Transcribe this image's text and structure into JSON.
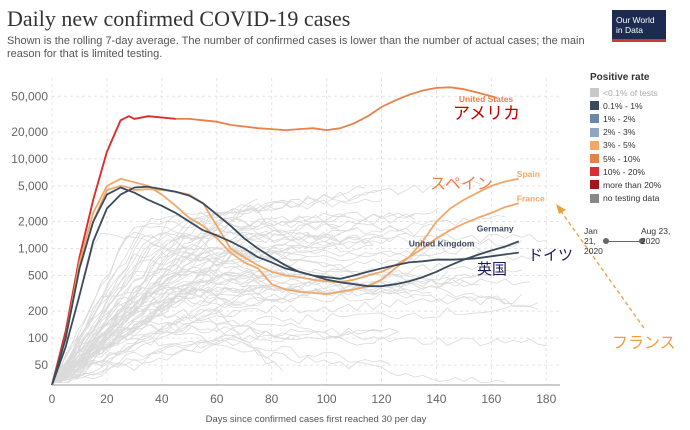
{
  "header": {
    "title": "Daily new confirmed COVID-19 cases",
    "subtitle": "Shown is the rolling 7-day average. The number of confirmed cases is lower than the number of actual cases; the main reason for that is limited testing.",
    "logo_line1": "Our World",
    "logo_line2": "in Data"
  },
  "legend": {
    "title": "Positive rate",
    "items": [
      {
        "label": "<0.1% of tests",
        "color": "#c8c8c8",
        "faded": true
      },
      {
        "label": "0.1% - 1%",
        "color": "#3b4a5c"
      },
      {
        "label": "1% - 2%",
        "color": "#6b87a8"
      },
      {
        "label": "2% - 3%",
        "color": "#8fa6c3"
      },
      {
        "label": "3% - 5%",
        "color": "#f0a86a"
      },
      {
        "label": "5% - 10%",
        "color": "#e8804a"
      },
      {
        "label": "10% - 20%",
        "color": "#d83030"
      },
      {
        "label": "more than 20%",
        "color": "#9c1a1a"
      },
      {
        "label": "no testing data",
        "color": "#888888"
      }
    ]
  },
  "timeline": {
    "start": "Jan 21, 2020",
    "end": "Aug 23, 2020"
  },
  "colors": {
    "united_states": "#e8804a",
    "spain": "#f0a86a",
    "france": "#f0a86a",
    "germany": "#3b4a5c",
    "united_kingdom": "#3b4a5c",
    "background_lines": "#dadada",
    "annotation_us": "#c00000",
    "annotation_spain": "#e8804a",
    "annotation_france": "#e8a040",
    "annotation_uk": "#1a1a5a"
  },
  "annotations": {
    "united_states_ja": "アメリカ",
    "spain_ja": "スペイン",
    "united_kingdom_ja": "英国",
    "germany_ja": "ドイツ",
    "france_ja": "フランス"
  },
  "chart_data": {
    "type": "line",
    "title": "Daily new confirmed COVID-19 cases",
    "subtitle": "Shown is the rolling 7-day average. The number of confirmed cases is lower than the number of actual cases; the main reason for that is limited testing.",
    "xlabel": "Days since confirmed cases first reached 30 per day",
    "ylabel": "",
    "x_ticks": [
      0,
      20,
      40,
      60,
      80,
      100,
      120,
      140,
      160,
      180
    ],
    "y_ticks": [
      50,
      100,
      200,
      500,
      1000,
      2000,
      5000,
      10000,
      20000,
      50000
    ],
    "y_tick_labels": [
      "50",
      "100",
      "200",
      "500",
      "1,000",
      "2,000",
      "5,000",
      "10,000",
      "20,000",
      "50,000"
    ],
    "y_scale": "log",
    "xlim": [
      0,
      185
    ],
    "ylim": [
      30,
      80000
    ],
    "grid": true,
    "series": [
      {
        "name": "United States",
        "x": [
          0,
          5,
          10,
          15,
          20,
          25,
          28,
          30,
          35,
          40,
          45,
          50,
          55,
          60,
          65,
          70,
          75,
          80,
          85,
          90,
          95,
          100,
          105,
          110,
          115,
          120,
          125,
          130,
          135,
          140,
          145,
          150,
          155,
          160,
          162
        ],
        "y": [
          30,
          120,
          800,
          3500,
          12000,
          27000,
          30000,
          28000,
          30000,
          29000,
          28000,
          28000,
          27000,
          26000,
          24000,
          23000,
          22000,
          21500,
          21000,
          21500,
          22000,
          21000,
          22000,
          25000,
          30000,
          38000,
          45000,
          52000,
          58000,
          62000,
          63000,
          60000,
          55000,
          50000,
          48000
        ]
      },
      {
        "name": "Spain",
        "x": [
          0,
          5,
          10,
          15,
          20,
          25,
          30,
          35,
          40,
          45,
          50,
          55,
          60,
          65,
          70,
          75,
          80,
          85,
          90,
          95,
          100,
          105,
          110,
          115,
          120,
          125,
          130,
          135,
          140,
          145,
          150,
          155,
          160,
          165,
          170
        ],
        "y": [
          30,
          100,
          700,
          2500,
          5000,
          6000,
          5500,
          5000,
          4000,
          3000,
          2200,
          1800,
          1300,
          900,
          700,
          600,
          400,
          350,
          330,
          320,
          310,
          330,
          350,
          380,
          450,
          600,
          800,
          1200,
          2000,
          2800,
          3500,
          4200,
          5000,
          5600,
          6000
        ]
      },
      {
        "name": "France",
        "x": [
          0,
          5,
          10,
          15,
          20,
          25,
          28,
          30,
          35,
          40,
          45,
          50,
          55,
          60,
          65,
          70,
          75,
          80,
          85,
          90,
          95,
          100,
          105,
          110,
          115,
          120,
          125,
          130,
          135,
          140,
          145,
          150,
          155,
          160,
          165,
          170
        ],
        "y": [
          30,
          100,
          600,
          2000,
          4500,
          5000,
          4800,
          4500,
          4600,
          4500,
          4300,
          4000,
          3200,
          1800,
          1000,
          800,
          650,
          550,
          500,
          480,
          450,
          430,
          420,
          450,
          500,
          550,
          650,
          800,
          1000,
          1300,
          1600,
          1900,
          2200,
          2500,
          2900,
          3200
        ]
      },
      {
        "name": "Germany",
        "x": [
          0,
          5,
          10,
          15,
          20,
          25,
          30,
          35,
          40,
          45,
          50,
          55,
          60,
          65,
          70,
          75,
          80,
          85,
          90,
          95,
          100,
          105,
          110,
          115,
          120,
          125,
          130,
          135,
          140,
          145,
          150,
          155,
          160,
          165,
          170
        ],
        "y": [
          30,
          100,
          600,
          2000,
          4000,
          4800,
          4200,
          3500,
          3000,
          2500,
          2000,
          1600,
          1400,
          1200,
          1000,
          800,
          700,
          600,
          550,
          500,
          450,
          420,
          400,
          380,
          380,
          400,
          430,
          480,
          550,
          650,
          750,
          850,
          950,
          1050,
          1200
        ]
      },
      {
        "name": "United Kingdom",
        "x": [
          0,
          5,
          10,
          15,
          20,
          25,
          30,
          35,
          40,
          45,
          50,
          55,
          60,
          65,
          70,
          75,
          80,
          85,
          90,
          95,
          100,
          105,
          110,
          115,
          120,
          125,
          130,
          135,
          140,
          145,
          150,
          155,
          160,
          165,
          170
        ],
        "y": [
          30,
          80,
          300,
          1200,
          2800,
          4000,
          4800,
          4900,
          4600,
          4300,
          3900,
          3200,
          2400,
          1800,
          1300,
          1000,
          800,
          650,
          550,
          500,
          480,
          460,
          500,
          550,
          600,
          650,
          700,
          720,
          750,
          750,
          760,
          780,
          820,
          860,
          900
        ]
      }
    ]
  }
}
